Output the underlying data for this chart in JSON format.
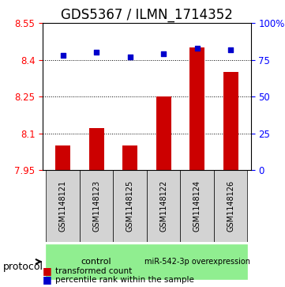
{
  "title": "GDS5367 / ILMN_1714352",
  "samples": [
    "GSM1148121",
    "GSM1148123",
    "GSM1148125",
    "GSM1148122",
    "GSM1148124",
    "GSM1148126"
  ],
  "transformed_counts": [
    8.05,
    8.12,
    8.05,
    8.25,
    8.45,
    8.35
  ],
  "percentile_ranks": [
    78,
    80,
    77,
    79,
    83,
    82
  ],
  "groups": [
    "control",
    "control",
    "control",
    "miR-542-3p overexpression",
    "miR-542-3p overexpression",
    "miR-542-3p overexpression"
  ],
  "group_colors": [
    "#90EE90",
    "#90EE90",
    "#90EE90",
    "#90EE90",
    "#90EE90",
    "#90EE90"
  ],
  "ylim_left": [
    7.95,
    8.55
  ],
  "ylim_right": [
    0,
    100
  ],
  "yticks_left": [
    7.95,
    8.1,
    8.25,
    8.4,
    8.55
  ],
  "yticks_right": [
    0,
    25,
    50,
    75,
    100
  ],
  "ytick_labels_left": [
    "7.95",
    "8.1",
    "8.25",
    "8.4",
    "8.55"
  ],
  "ytick_labels_right": [
    "0",
    "25",
    "50",
    "75",
    "100%"
  ],
  "bar_color": "#CC0000",
  "dot_color": "#0000CC",
  "background_color": "#ffffff",
  "plot_area_color": "#ffffff",
  "xlabel_area_color": "#d3d3d3",
  "control_label": "control",
  "overexpression_label": "miR-542-3p overexpression",
  "protocol_label": "protocol",
  "legend_bar": "transformed count",
  "legend_dot": "percentile rank within the sample",
  "grid_color": "#000000",
  "title_fontsize": 12,
  "tick_fontsize": 8.5,
  "label_fontsize": 9
}
